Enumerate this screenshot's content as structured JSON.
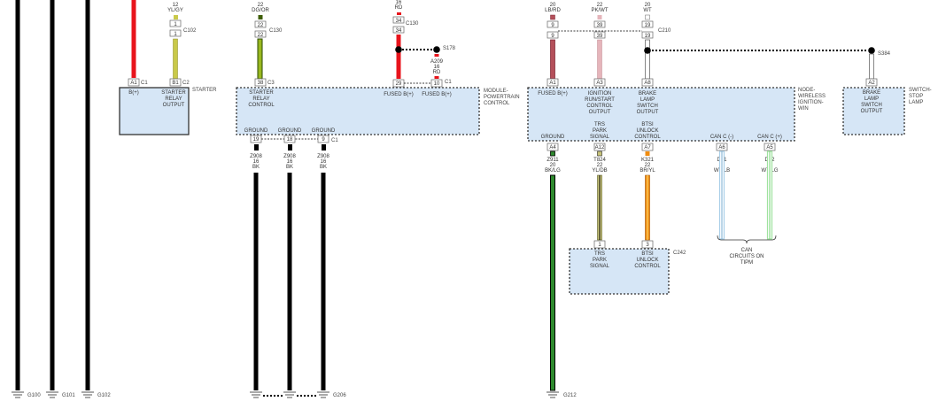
{
  "colors": {
    "red": "#e8141c",
    "black": "#000000",
    "yl_gy": "#c9c94a",
    "dg_or": "#3f5f08",
    "lb_rd": "#b4505a",
    "pk_wt": "#e5b5bb",
    "wt": "#ffffff",
    "bk_lg": "#2e8a2e",
    "yl_db": "#c8c47a",
    "br_yl": "#f08c10",
    "wt_lb": "#a9cfe8",
    "wt_lg": "#9fe39f",
    "box_fill": "#d6e6f6"
  },
  "grounds": {
    "g100": "G100",
    "g101": "G101",
    "g102": "G102",
    "g206": "G206",
    "g212": "G212"
  },
  "starter": {
    "name": "STARTER",
    "wire_yl": {
      "gauge": "12",
      "color": "YL/GY",
      "conn_top": "1",
      "conn_bot": "1",
      "connector": "C102"
    },
    "pin_a1": "A1",
    "c1": "C1",
    "pin_b1": "B1",
    "c2": "C2",
    "b_plus": "B(+)",
    "relay_output": [
      "STARTER",
      "RELAY",
      "OUTPUT"
    ]
  },
  "pcm": {
    "name": [
      "MODULE-",
      "POWERTRAIN",
      "CONTROL"
    ],
    "wire_dg": {
      "gauge": "22",
      "color": "DG/OR",
      "conn_top": "22",
      "conn_bot": "22",
      "connector": "C130"
    },
    "pin_38": "38",
    "c3": "C3",
    "relay_control": [
      "STARTER",
      "RELAY",
      "CONTROL"
    ],
    "wire_rd": {
      "gauge": "16",
      "color": "RD",
      "conn_top": "34",
      "conn_bot": "34",
      "connector": "C130"
    },
    "splice": "S178",
    "wire_a209": {
      "circuit": "A209",
      "gauge": "16",
      "color": "RD"
    },
    "pin_29": "29",
    "pin_10": "10",
    "c1": "C1",
    "fused_1": "FUSED B(+)",
    "fused_2": "FUSED B(+)",
    "ground_labels": [
      "GROUND",
      "GROUND",
      "GROUND"
    ],
    "ground_pins": [
      "19",
      "18",
      "9"
    ],
    "ground_conn": "C1",
    "ground_wires": [
      {
        "circuit": "Z908",
        "gauge": "16",
        "color": "BK"
      },
      {
        "circuit": "Z908",
        "gauge": "16",
        "color": "BK"
      },
      {
        "circuit": "Z908",
        "gauge": "16",
        "color": "BK"
      }
    ]
  },
  "win": {
    "name": [
      "NODE-",
      "WIRELESS",
      "IGNITION-",
      "WIN"
    ],
    "top_wires": [
      {
        "gauge": "20",
        "color": "LB/RD",
        "conn": "9",
        "pin": "A1"
      },
      {
        "gauge": "22",
        "color": "PK/WT",
        "conn": "39",
        "pin": "A3"
      },
      {
        "gauge": "20",
        "color": "WT",
        "conn": "19",
        "pin": "A8"
      }
    ],
    "connector": "C210",
    "splice": "S384",
    "fused": "FUSED B(+)",
    "ign": [
      "IGNITION",
      "RUN/START",
      "CONTROL",
      "OUTPUT"
    ],
    "brake": [
      "BRAKE",
      "LAMP",
      "SWITCH",
      "OUTPUT"
    ],
    "trs": [
      "TRS",
      "PARK",
      "SIGNAL"
    ],
    "btsi": [
      "BTSI",
      "UNLOCK",
      "CONTROL"
    ],
    "ground": "GROUND",
    "can_neg": "CAN C (-)",
    "can_pos": "CAN C (+)",
    "bottom_wires": [
      {
        "pin": "A4",
        "circuit": "Z911",
        "gauge": "20",
        "color": "BK/LG"
      },
      {
        "pin": "A12",
        "circuit": "T824",
        "gauge": "22",
        "color": "YL/DB"
      },
      {
        "pin": "A7",
        "circuit": "K321",
        "gauge": "22",
        "color": "BR/YL"
      },
      {
        "pin": "A6",
        "circuit": "D51",
        "gauge": "22",
        "color": "WT/LB"
      },
      {
        "pin": "A5",
        "circuit": "D52",
        "gauge": "22",
        "color": "WT/LG"
      }
    ],
    "can_note": [
      "CAN",
      "CIRCUITS ON",
      "TIPM"
    ]
  },
  "c242": {
    "name": "C242",
    "pin_1": "1",
    "pin_3": "3",
    "trs": [
      "TRS",
      "PARK",
      "SIGNAL"
    ],
    "btsi": [
      "BTSI",
      "UNLOCK",
      "CONTROL"
    ]
  },
  "stop_switch": {
    "name": [
      "SWITCH-",
      "STOP",
      "LAMP"
    ],
    "pin": "A2",
    "brake": [
      "BRAKE",
      "LAMP",
      "SWITCH",
      "OUTPUT"
    ]
  }
}
